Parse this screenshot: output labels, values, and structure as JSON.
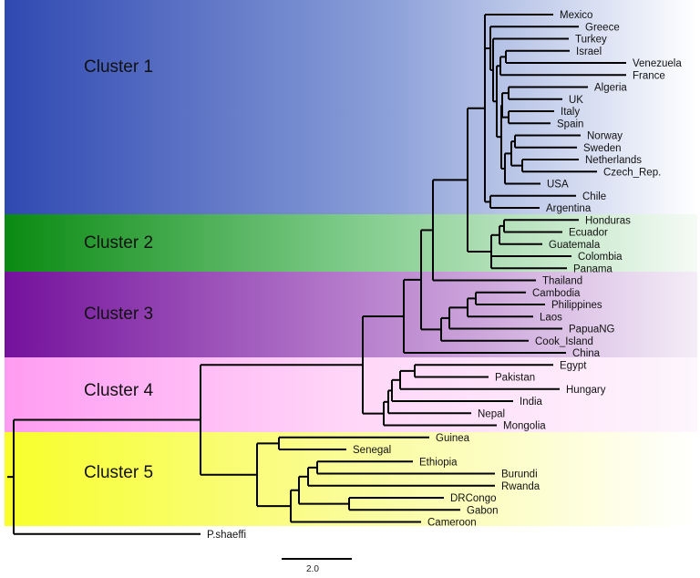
{
  "clusters": [
    {
      "label": "Cluster 1",
      "color": "#2f49b2"
    },
    {
      "label": "Cluster 2",
      "color": "#0a8a12"
    },
    {
      "label": "Cluster 3",
      "color": "#74119c"
    },
    {
      "label": "Cluster 4",
      "color": "#ff9cf2"
    },
    {
      "label": "Cluster 5",
      "color": "#f8ff2a"
    }
  ],
  "leaves": [
    "Mexico",
    "Greece",
    "Turkey",
    "Israel",
    "Venezuela",
    "France",
    "Algeria",
    "UK",
    "Italy",
    "Spain",
    "Norway",
    "Sweden",
    "Netherlands",
    "Czech_Rep.",
    "USA",
    "Chile",
    "Argentina",
    "Honduras",
    "Ecuador",
    "Guatemala",
    "Colombia",
    "Panama",
    "Thailand",
    "Cambodia",
    "Philippines",
    "Laos",
    "PapuaNG",
    "Cook_Island",
    "China",
    "Egypt",
    "Pakistan",
    "Hungary",
    "India",
    "Nepal",
    "Mongolia",
    "Guinea",
    "Senegal",
    "Ethiopia",
    "Burundi",
    "Rwanda",
    "DRCongo",
    "Gabon",
    "Cameroon",
    "P.shaeffi"
  ],
  "scale_bar": {
    "label": "2.0",
    "value": 2.0
  }
}
